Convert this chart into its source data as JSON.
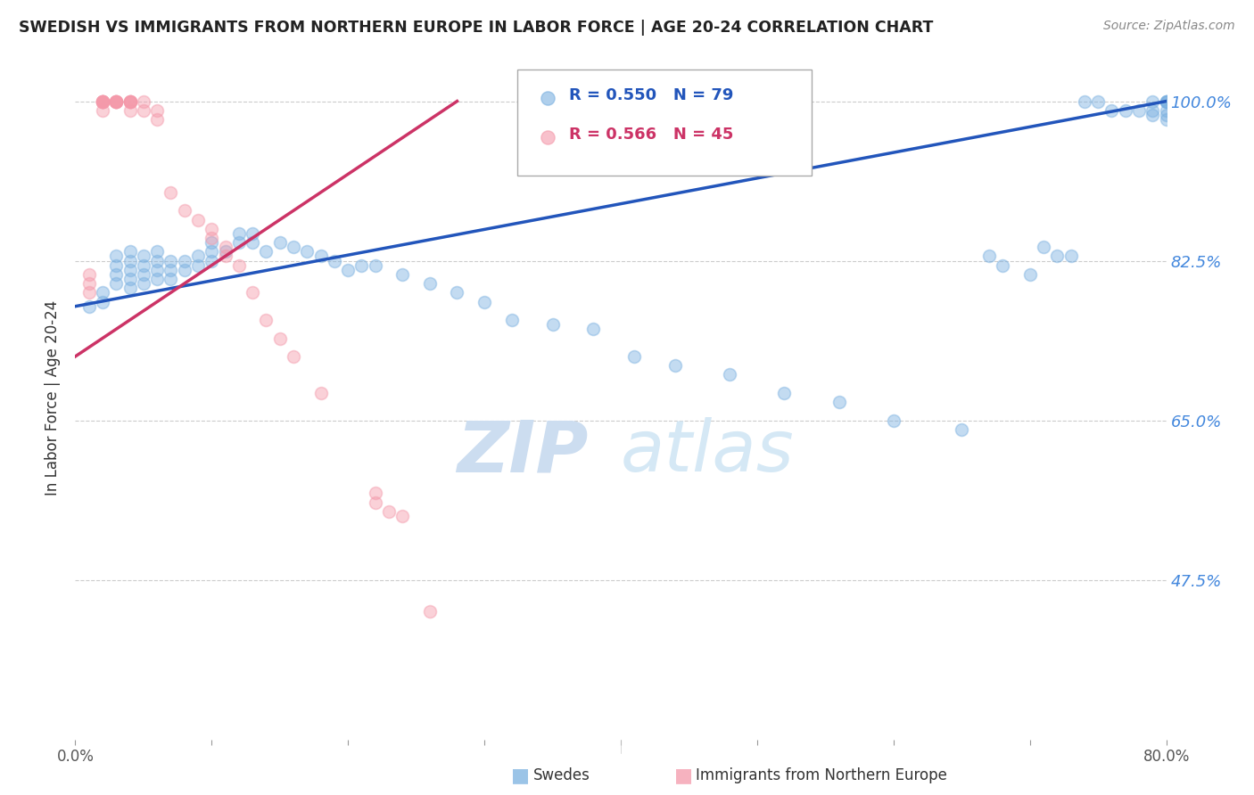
{
  "title": "SWEDISH VS IMMIGRANTS FROM NORTHERN EUROPE IN LABOR FORCE | AGE 20-24 CORRELATION CHART",
  "source": "Source: ZipAtlas.com",
  "ylabel": "In Labor Force | Age 20-24",
  "xmin": 0.0,
  "xmax": 0.8,
  "ymin": 0.3,
  "ymax": 1.05,
  "yticks": [
    0.475,
    0.65,
    0.825,
    1.0
  ],
  "ytick_labels": [
    "47.5%",
    "65.0%",
    "82.5%",
    "100.0%"
  ],
  "xticks": [
    0.0,
    0.1,
    0.2,
    0.3,
    0.4,
    0.5,
    0.6,
    0.7,
    0.8
  ],
  "xtick_labels": [
    "0.0%",
    "",
    "",
    "",
    "",
    "",
    "",
    "",
    "80.0%"
  ],
  "legend_blue_r": "R = 0.550",
  "legend_blue_n": "N = 79",
  "legend_pink_r": "R = 0.566",
  "legend_pink_n": "N = 45",
  "legend_label_blue": "Swedes",
  "legend_label_pink": "Immigrants from Northern Europe",
  "blue_color": "#7ab0e0",
  "pink_color": "#f499aa",
  "blue_line_color": "#2255bb",
  "pink_line_color": "#cc3366",
  "title_color": "#222222",
  "axis_label_color": "#333333",
  "ytick_color": "#4488dd",
  "xtick_color": "#555555",
  "grid_color": "#cccccc",
  "watermark_zip_color": "#ccddf0",
  "watermark_atlas_color": "#d5e8f5",
  "background_color": "#ffffff",
  "blue_x": [
    0.01,
    0.02,
    0.02,
    0.03,
    0.03,
    0.03,
    0.03,
    0.04,
    0.04,
    0.04,
    0.04,
    0.04,
    0.05,
    0.05,
    0.05,
    0.05,
    0.06,
    0.06,
    0.06,
    0.06,
    0.07,
    0.07,
    0.07,
    0.08,
    0.08,
    0.09,
    0.09,
    0.1,
    0.1,
    0.1,
    0.11,
    0.12,
    0.12,
    0.13,
    0.13,
    0.14,
    0.15,
    0.16,
    0.17,
    0.18,
    0.19,
    0.2,
    0.21,
    0.22,
    0.24,
    0.26,
    0.28,
    0.3,
    0.32,
    0.35,
    0.38,
    0.41,
    0.44,
    0.48,
    0.52,
    0.56,
    0.6,
    0.65,
    0.67,
    0.68,
    0.7,
    0.71,
    0.72,
    0.73,
    0.74,
    0.75,
    0.76,
    0.77,
    0.78,
    0.79,
    0.79,
    0.79,
    0.8,
    0.8,
    0.8,
    0.8,
    0.8,
    0.8,
    0.8
  ],
  "blue_y": [
    0.775,
    0.78,
    0.79,
    0.8,
    0.81,
    0.82,
    0.83,
    0.795,
    0.805,
    0.815,
    0.825,
    0.835,
    0.8,
    0.81,
    0.82,
    0.83,
    0.805,
    0.815,
    0.825,
    0.835,
    0.805,
    0.815,
    0.825,
    0.815,
    0.825,
    0.82,
    0.83,
    0.825,
    0.835,
    0.845,
    0.835,
    0.845,
    0.855,
    0.845,
    0.855,
    0.835,
    0.845,
    0.84,
    0.835,
    0.83,
    0.825,
    0.815,
    0.82,
    0.82,
    0.81,
    0.8,
    0.79,
    0.78,
    0.76,
    0.755,
    0.75,
    0.72,
    0.71,
    0.7,
    0.68,
    0.67,
    0.65,
    0.64,
    0.83,
    0.82,
    0.81,
    0.84,
    0.83,
    0.83,
    1.0,
    1.0,
    0.99,
    0.99,
    0.99,
    0.985,
    1.0,
    0.99,
    1.0,
    1.0,
    1.0,
    1.0,
    0.99,
    0.985,
    0.98
  ],
  "pink_x": [
    0.01,
    0.01,
    0.01,
    0.02,
    0.02,
    0.02,
    0.02,
    0.02,
    0.02,
    0.02,
    0.02,
    0.03,
    0.03,
    0.03,
    0.03,
    0.03,
    0.03,
    0.04,
    0.04,
    0.04,
    0.04,
    0.04,
    0.04,
    0.05,
    0.05,
    0.06,
    0.06,
    0.07,
    0.08,
    0.09,
    0.1,
    0.1,
    0.11,
    0.11,
    0.12,
    0.13,
    0.14,
    0.15,
    0.16,
    0.18,
    0.22,
    0.22,
    0.23,
    0.24,
    0.26
  ],
  "pink_y": [
    0.79,
    0.8,
    0.81,
    1.0,
    1.0,
    1.0,
    1.0,
    1.0,
    1.0,
    1.0,
    0.99,
    1.0,
    1.0,
    1.0,
    1.0,
    1.0,
    1.0,
    1.0,
    1.0,
    1.0,
    1.0,
    1.0,
    0.99,
    0.99,
    1.0,
    0.99,
    0.98,
    0.9,
    0.88,
    0.87,
    0.86,
    0.85,
    0.84,
    0.83,
    0.82,
    0.79,
    0.76,
    0.74,
    0.72,
    0.68,
    0.57,
    0.56,
    0.55,
    0.545,
    0.44
  ],
  "pink_trend_xstart": 0.0,
  "pink_trend_xend": 0.28,
  "blue_trend_xstart": 0.0,
  "blue_trend_xend": 0.8,
  "marker_size": 100,
  "marker_alpha": 0.45,
  "marker_lw": 1.2
}
